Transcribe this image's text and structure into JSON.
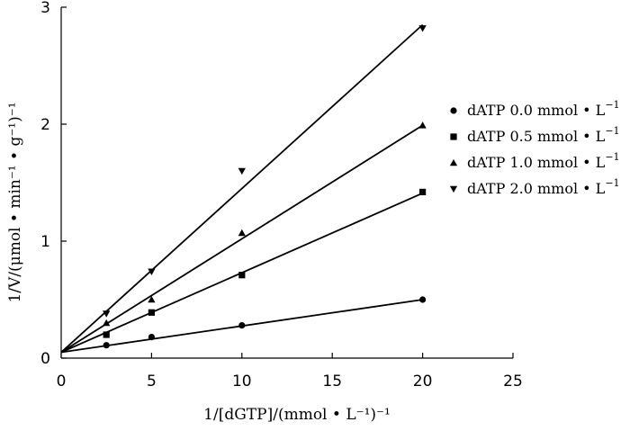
{
  "chart_data": {
    "type": "scatter",
    "xlabel": "1/[dGTP]/(mmol • L⁻¹)⁻¹",
    "ylabel": "1/V/(μmol • min⁻¹ • g⁻¹)⁻¹",
    "xlim": [
      0,
      25
    ],
    "ylim": [
      0,
      3
    ],
    "xticks": [
      0,
      5,
      10,
      15,
      20,
      25
    ],
    "yticks": [
      0,
      1,
      2,
      3
    ],
    "grid": false,
    "legend_position": "right",
    "series": [
      {
        "name": "dATP 0.0 mmol • L⁻¹",
        "label_main": "dATP 0.0 mmol • L",
        "label_sup": "−1",
        "marker": "circle",
        "x": [
          2.5,
          5,
          10,
          20
        ],
        "y": [
          0.11,
          0.18,
          0.28,
          0.5
        ],
        "fit": {
          "intercept": 0.05,
          "slope": 0.0225
        }
      },
      {
        "name": "dATP 0.5 mmol • L⁻¹",
        "label_main": "dATP 0.5 mmol • L",
        "label_sup": "−1",
        "marker": "square",
        "x": [
          2.5,
          5,
          10,
          20
        ],
        "y": [
          0.2,
          0.39,
          0.71,
          1.42
        ],
        "fit": {
          "intercept": 0.05,
          "slope": 0.068
        }
      },
      {
        "name": "dATP 1.0 mmol • L⁻¹",
        "label_main": "dATP 1.0 mmol • L",
        "label_sup": "−1",
        "marker": "triangle-up",
        "x": [
          2.5,
          5,
          10,
          20
        ],
        "y": [
          0.3,
          0.5,
          1.07,
          1.99
        ],
        "fit": {
          "intercept": 0.05,
          "slope": 0.097
        }
      },
      {
        "name": "dATP 2.0 mmol • L⁻¹",
        "label_main": "dATP 2.0 mmol • L",
        "label_sup": "−1",
        "marker": "triangle-down",
        "x": [
          2.5,
          5,
          10,
          20
        ],
        "y": [
          0.38,
          0.74,
          1.6,
          2.82
        ],
        "fit": {
          "intercept": 0.05,
          "slope": 0.14
        }
      }
    ]
  }
}
